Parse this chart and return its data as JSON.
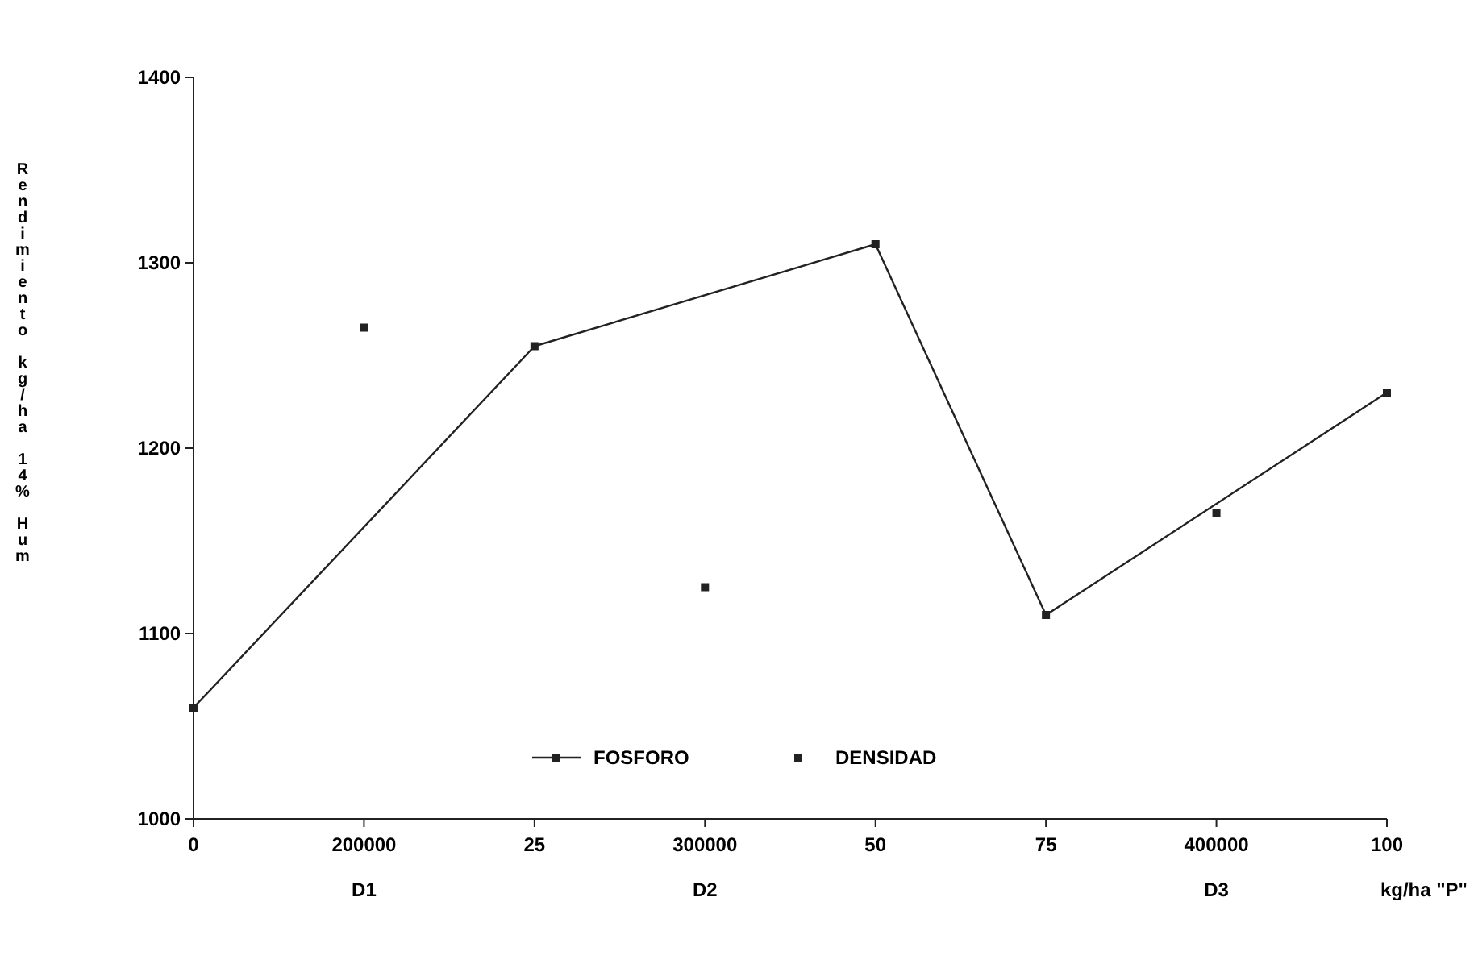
{
  "chart_data": {
    "type": "line",
    "categories": [
      "0",
      "200000",
      "25",
      "300000",
      "50",
      "75",
      "400000",
      "100"
    ],
    "series": [
      {
        "name": "FOSFORO",
        "color": "#222222",
        "marker": "square",
        "values": [
          1060,
          null,
          1255,
          null,
          1310,
          1110,
          null,
          1230
        ]
      },
      {
        "name": "DENSIDAD",
        "type": "scatter",
        "color": "#222222",
        "marker": "square",
        "values": [
          null,
          1265,
          null,
          1125,
          null,
          null,
          1165,
          null
        ]
      }
    ],
    "ylim": [
      1000,
      1400
    ],
    "yticks": [
      1000,
      1100,
      1200,
      1300,
      1400
    ],
    "ylabel": "Rendimiento kg/ha 14% Hum",
    "xlabel": "kg/ha \"P\"",
    "annotations": [
      "D1",
      "D2",
      "D3"
    ],
    "legend": "bottom",
    "grid": false
  }
}
